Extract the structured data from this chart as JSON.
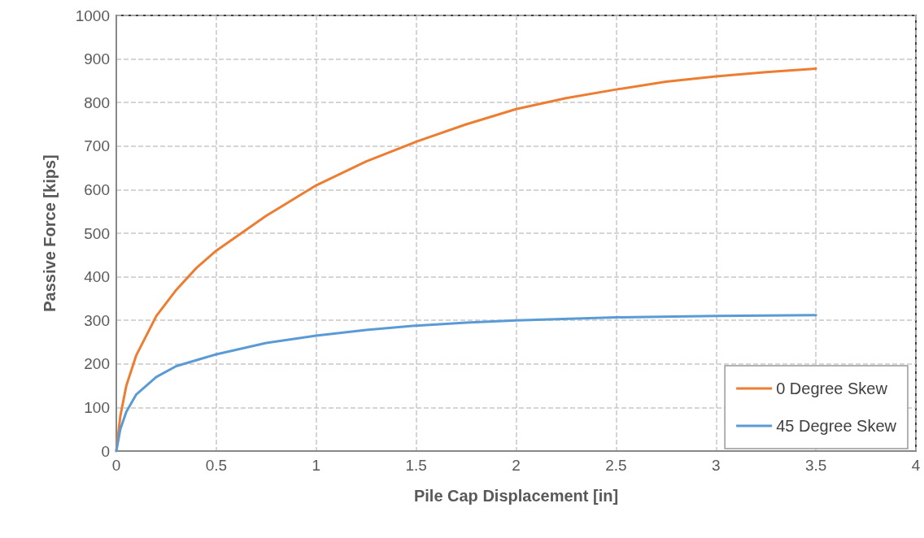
{
  "chart_data": {
    "type": "line",
    "xlabel": "Pile Cap Displacement [in]",
    "ylabel": "Passive Force [kips]",
    "xlim": [
      0,
      4
    ],
    "xticks": [
      0,
      0.5,
      1,
      1.5,
      2,
      2.5,
      3,
      3.5,
      4
    ],
    "ylim": [
      0,
      1000
    ],
    "yticks": [
      0,
      100,
      200,
      300,
      400,
      500,
      600,
      700,
      800,
      900,
      1000
    ],
    "grid": true,
    "legend": "bottom right",
    "marker": "none",
    "line_style": "solid",
    "series": [
      {
        "name": "0 Degree Skew",
        "color": "#ed7d31",
        "x": [
          0,
          0.02,
          0.05,
          0.1,
          0.2,
          0.3,
          0.4,
          0.5,
          0.75,
          1,
          1.25,
          1.5,
          1.75,
          2,
          2.25,
          2.5,
          2.75,
          3,
          3.25,
          3.5
        ],
        "values": [
          0,
          80,
          150,
          220,
          310,
          370,
          420,
          460,
          540,
          610,
          665,
          710,
          750,
          785,
          810,
          830,
          848,
          860,
          870,
          878
        ]
      },
      {
        "name": "45 Degree Skew",
        "color": "#5b9bd5",
        "x": [
          0,
          0.02,
          0.05,
          0.1,
          0.2,
          0.3,
          0.5,
          0.75,
          1,
          1.25,
          1.5,
          1.75,
          2,
          2.5,
          3,
          3.5
        ],
        "values": [
          0,
          50,
          90,
          130,
          170,
          195,
          222,
          248,
          265,
          278,
          288,
          295,
          300,
          307,
          310,
          312
        ]
      }
    ]
  }
}
